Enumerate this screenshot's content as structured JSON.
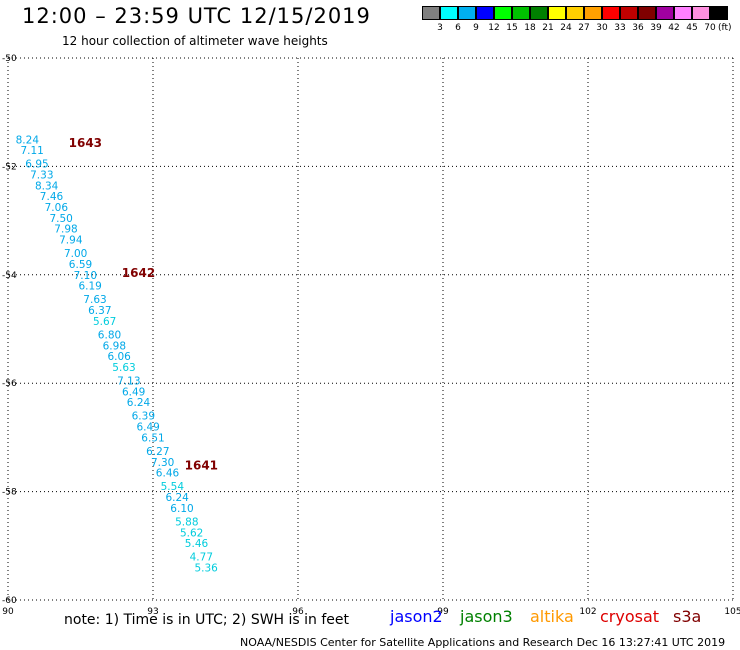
{
  "header": {
    "title": "12:00 – 23:59 UTC 12/15/2019",
    "subtitle": "12 hour collection of altimeter wave heights"
  },
  "colorbar": {
    "labels": [
      "3",
      "6",
      "9",
      "12",
      "15",
      "18",
      "21",
      "24",
      "27",
      "30",
      "33",
      "36",
      "39",
      "42",
      "45",
      "70"
    ],
    "colors": [
      "#808080",
      "#00ffff",
      "#00b0f0",
      "#0000ff",
      "#00ff00",
      "#00c000",
      "#008000",
      "#ffff00",
      "#ffd000",
      "#ffa000",
      "#ff0000",
      "#c00000",
      "#800000",
      "#a000a0",
      "#ff80ff",
      "#ff90e0",
      "#000000"
    ],
    "unit": "(ft)"
  },
  "note": "note:  1) Time is in UTC;  2) SWH is in feet",
  "legend": [
    {
      "label": "jason2",
      "color": "#0000ff"
    },
    {
      "label": "jason3",
      "color": "#008000"
    },
    {
      "label": "altika",
      "color": "#ff9900"
    },
    {
      "label": "cryosat",
      "color": "#dd0000"
    },
    {
      "label": "s3a",
      "color": "#800000"
    }
  ],
  "footer": "NOAA/NESDIS Center for Satellite Applications and Research     Dec 16 13:27:41 UTC 2019",
  "chart_data": {
    "type": "scatter",
    "xlim": [
      90,
      105
    ],
    "ylim": [
      -60,
      -50
    ],
    "x_ticks": [
      "90",
      "93",
      "96",
      "99",
      "102",
      "105"
    ],
    "y_ticks": [
      "-50",
      "-52",
      "-54",
      "-56",
      "-58",
      "-60"
    ],
    "grid": true,
    "points": [
      {
        "lon": 90.4,
        "lat": -51.5,
        "value": "8.24"
      },
      {
        "lon": 90.5,
        "lat": -51.7,
        "value": "7.11"
      },
      {
        "lon": 90.6,
        "lat": -51.95,
        "value": "6.95"
      },
      {
        "lon": 90.7,
        "lat": -52.15,
        "value": "7.33"
      },
      {
        "lon": 90.8,
        "lat": -52.35,
        "value": "8.34"
      },
      {
        "lon": 90.9,
        "lat": -52.55,
        "value": "7.46"
      },
      {
        "lon": 91.0,
        "lat": -52.75,
        "value": "7.06"
      },
      {
        "lon": 91.1,
        "lat": -52.95,
        "value": "7.50"
      },
      {
        "lon": 91.2,
        "lat": -53.15,
        "value": "7.98"
      },
      {
        "lon": 91.3,
        "lat": -53.35,
        "value": "7.94"
      },
      {
        "lon": 91.4,
        "lat": -53.6,
        "value": "7.00"
      },
      {
        "lon": 91.5,
        "lat": -53.8,
        "value": "6.59"
      },
      {
        "lon": 91.6,
        "lat": -54.0,
        "value": "7.10"
      },
      {
        "lon": 91.7,
        "lat": -54.2,
        "value": "6.19"
      },
      {
        "lon": 91.8,
        "lat": -54.45,
        "value": "7.63"
      },
      {
        "lon": 91.9,
        "lat": -54.65,
        "value": "6.37"
      },
      {
        "lon": 92.0,
        "lat": -54.85,
        "value": "5.67"
      },
      {
        "lon": 92.1,
        "lat": -55.1,
        "value": "6.80"
      },
      {
        "lon": 92.2,
        "lat": -55.3,
        "value": "6.98"
      },
      {
        "lon": 92.3,
        "lat": -55.5,
        "value": "6.06"
      },
      {
        "lon": 92.4,
        "lat": -55.7,
        "value": "5.63"
      },
      {
        "lon": 92.5,
        "lat": -55.95,
        "value": "7.13"
      },
      {
        "lon": 92.6,
        "lat": -56.15,
        "value": "6.49"
      },
      {
        "lon": 92.7,
        "lat": -56.35,
        "value": "6.24"
      },
      {
        "lon": 92.8,
        "lat": -56.6,
        "value": "6.39"
      },
      {
        "lon": 92.9,
        "lat": -56.8,
        "value": "6.49"
      },
      {
        "lon": 93.0,
        "lat": -57.0,
        "value": "6.51"
      },
      {
        "lon": 93.1,
        "lat": -57.25,
        "value": "6.27"
      },
      {
        "lon": 93.2,
        "lat": -57.45,
        "value": "7.30"
      },
      {
        "lon": 93.3,
        "lat": -57.65,
        "value": "6.46"
      },
      {
        "lon": 93.4,
        "lat": -57.9,
        "value": "5.54"
      },
      {
        "lon": 93.5,
        "lat": -58.1,
        "value": "6.24"
      },
      {
        "lon": 93.6,
        "lat": -58.3,
        "value": "6.10"
      },
      {
        "lon": 93.7,
        "lat": -58.55,
        "value": "5.88"
      },
      {
        "lon": 93.8,
        "lat": -58.75,
        "value": "5.62"
      },
      {
        "lon": 93.9,
        "lat": -58.95,
        "value": "5.46"
      },
      {
        "lon": 94.0,
        "lat": -59.2,
        "value": "4.77"
      },
      {
        "lon": 94.1,
        "lat": -59.4,
        "value": "5.36"
      }
    ],
    "time_labels": [
      {
        "lon": 91.6,
        "lat": -51.55,
        "text": "1643"
      },
      {
        "lon": 92.7,
        "lat": -53.95,
        "text": "1642"
      },
      {
        "lon": 94.0,
        "lat": -57.5,
        "text": "1641"
      }
    ]
  }
}
